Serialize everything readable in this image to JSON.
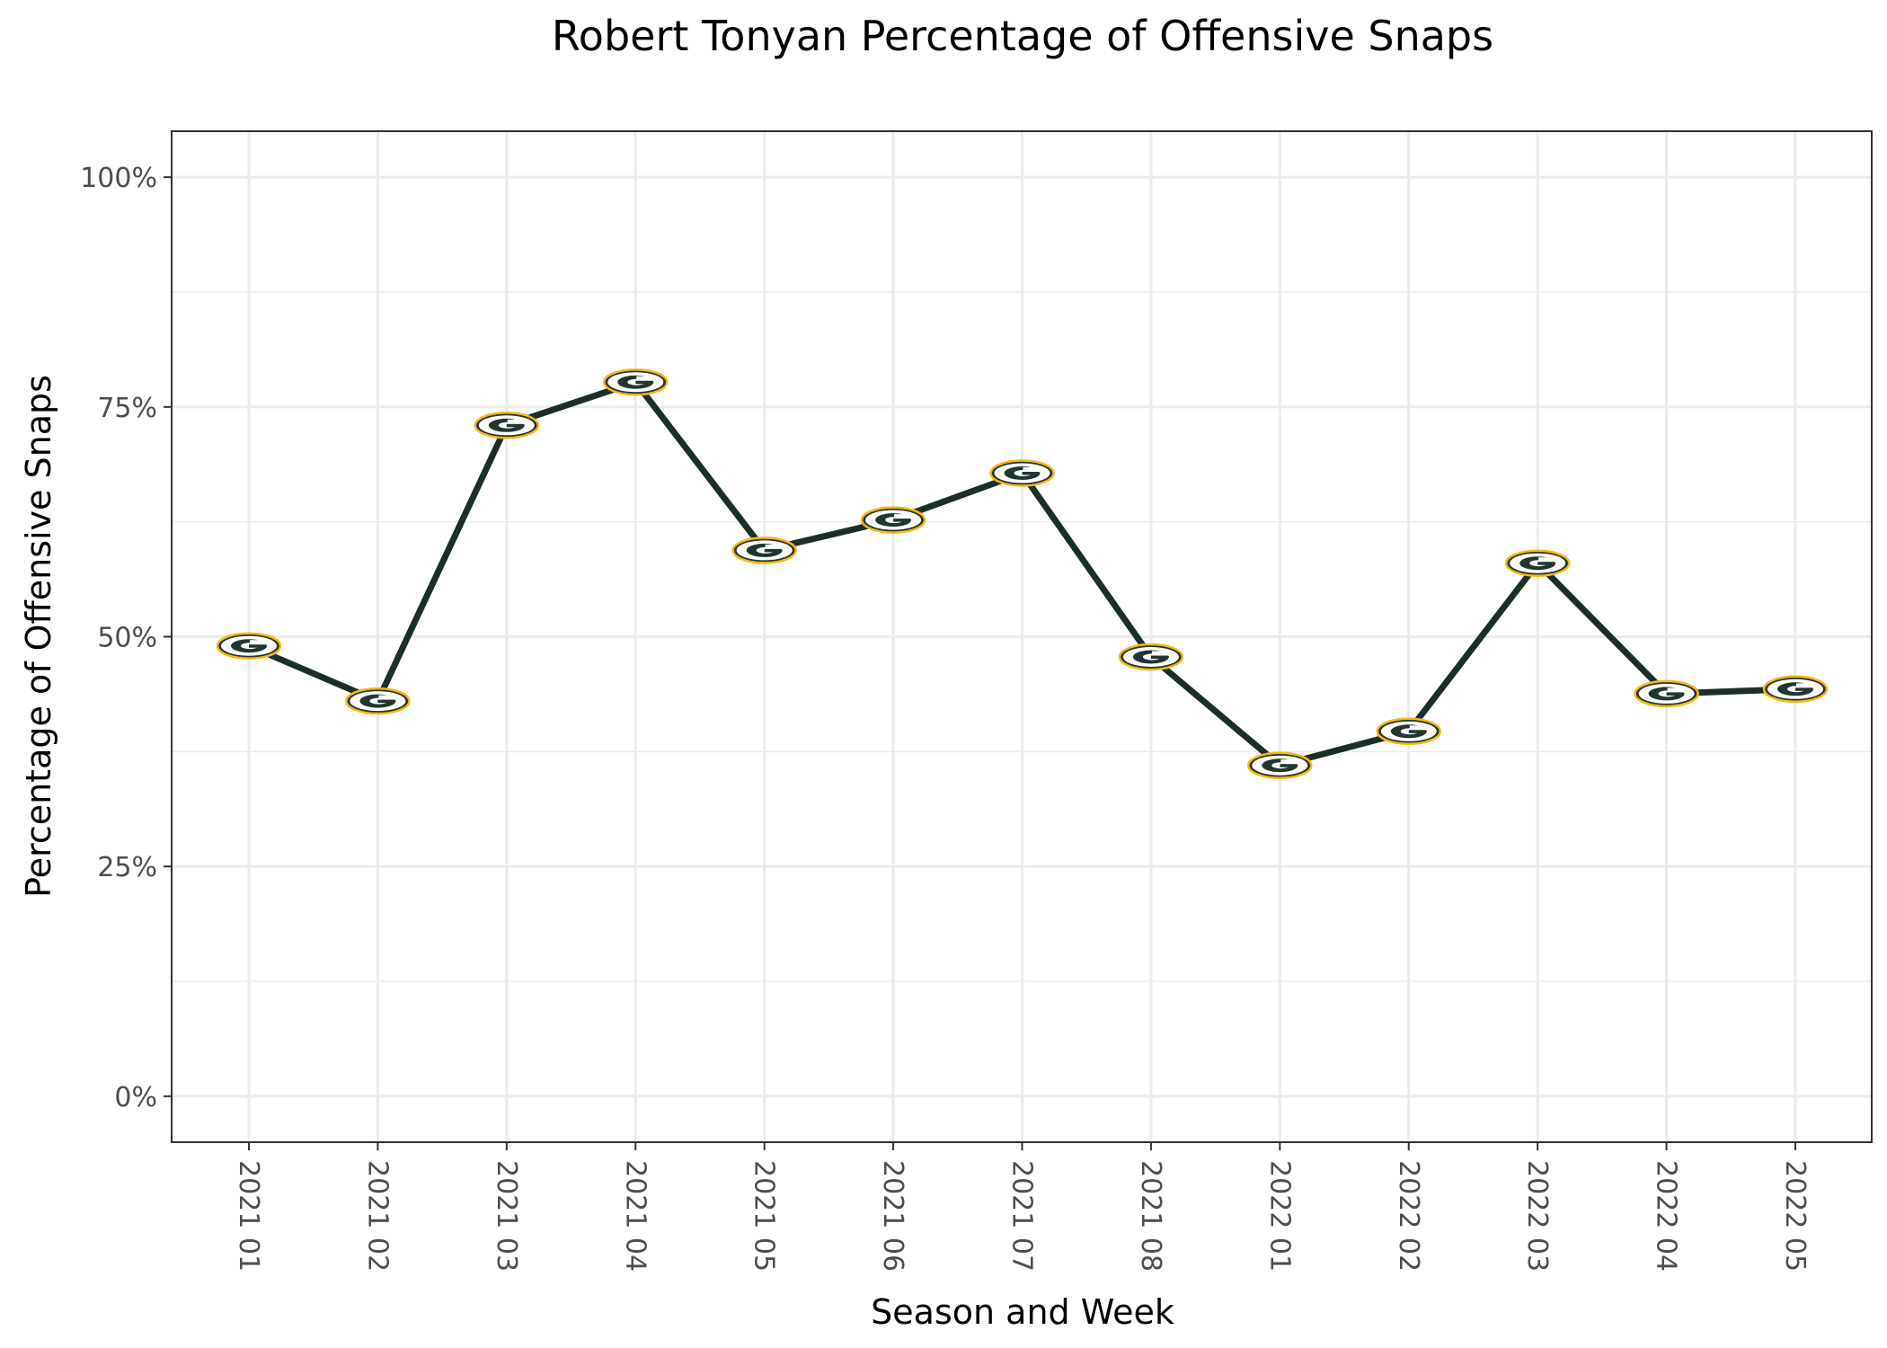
{
  "chart_data": {
    "type": "line",
    "title": "Robert Tonyan Percentage of Offensive Snaps",
    "xlabel": "Season and Week",
    "ylabel": "Percentage of Offensive Snaps",
    "categories": [
      "2021 01",
      "2021 02",
      "2021 03",
      "2021 04",
      "2021 05",
      "2021 06",
      "2021 07",
      "2021 08",
      "2022 01",
      "2022 02",
      "2022 03",
      "2022 04",
      "2022 05"
    ],
    "values": [
      49,
      43,
      73,
      77.7,
      59.4,
      62.7,
      67.8,
      47.8,
      36,
      39.7,
      58,
      43.8,
      44.3
    ],
    "ylim": [
      -5,
      105
    ],
    "y_ticks": [
      0,
      25,
      50,
      75,
      100
    ],
    "y_tick_labels": [
      "0%",
      "25%",
      "50%",
      "75%",
      "100%"
    ],
    "grid": true,
    "marker": "team-logo-icon",
    "colors": {
      "line": "#1c2f26",
      "logo_green": "#203731",
      "logo_gold": "#ffb612",
      "grid": "#ebebeb",
      "panel_border": "#333333",
      "tick_text": "#4d4d4d"
    }
  }
}
